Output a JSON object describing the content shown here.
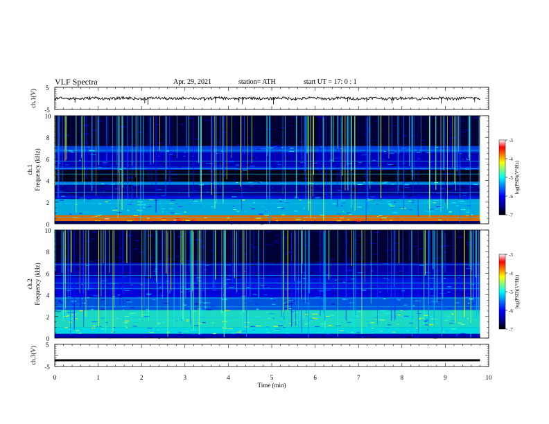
{
  "header": {
    "title": "VLF  Spectra",
    "date": "Apr. 29, 2021",
    "station": "station= ATH",
    "start_ut": "start  UT  =    17: 0   : 1"
  },
  "chart_data": [
    {
      "type": "line",
      "name": "waveform-ch1",
      "ylabel": "ch.1(V)",
      "ylim": [
        -5,
        5
      ],
      "yticks": [
        "5",
        "-5"
      ],
      "xlim": [
        0,
        10
      ],
      "description_values": {
        "baseline": 0,
        "fluctuation_amplitude": 0.6,
        "end_min": 9.8
      }
    },
    {
      "type": "heatmap",
      "name": "spectrogram-ch1",
      "ylabel": "ch.1\nFrequency (kHz)",
      "ylim": [
        0,
        10
      ],
      "yticks": [
        "0",
        "2",
        "4",
        "6",
        "8",
        "10"
      ],
      "xlim": [
        0,
        10
      ],
      "data_end_min": 9.8,
      "bands_khz": [
        {
          "f0": 0.0,
          "f1": 0.25,
          "level": -6.6
        },
        {
          "f0": 0.25,
          "f1": 0.8,
          "level": -3.8
        },
        {
          "f0": 0.8,
          "f1": 2.3,
          "level": -5.2
        },
        {
          "f0": 2.3,
          "f1": 2.6,
          "level": -5.9
        },
        {
          "f0": 2.6,
          "f1": 3.6,
          "level": -6.4
        },
        {
          "f0": 3.6,
          "f1": 3.9,
          "level": -5.4
        },
        {
          "f0": 3.9,
          "f1": 5.0,
          "level": -6.9
        },
        {
          "f0": 5.0,
          "f1": 5.3,
          "level": -5.8
        },
        {
          "f0": 5.3,
          "f1": 6.6,
          "level": -6.2
        },
        {
          "f0": 6.6,
          "f1": 7.2,
          "level": -5.7
        },
        {
          "f0": 7.2,
          "f1": 10.0,
          "level": -6.8
        }
      ],
      "colorbar": {
        "label": "log(PSD)(V²/Hz)",
        "ticks": [
          "-3",
          "-4",
          "-5",
          "-6",
          "-7"
        ],
        "range": [
          -7,
          -3
        ]
      }
    },
    {
      "type": "heatmap",
      "name": "spectrogram-ch2",
      "ylabel": "ch.2\nFrequency (kHz)",
      "ylim": [
        0,
        10
      ],
      "yticks": [
        "0",
        "2",
        "4",
        "6",
        "8",
        "10"
      ],
      "xlim": [
        0,
        10
      ],
      "data_end_min": 9.8,
      "bands_khz": [
        {
          "f0": 0.0,
          "f1": 0.4,
          "level": -6.2
        },
        {
          "f0": 0.4,
          "f1": 1.0,
          "level": -5.0
        },
        {
          "f0": 1.0,
          "f1": 2.6,
          "level": -4.9
        },
        {
          "f0": 2.6,
          "f1": 3.8,
          "level": -5.6
        },
        {
          "f0": 3.8,
          "f1": 4.4,
          "level": -6.0
        },
        {
          "f0": 4.4,
          "f1": 5.6,
          "level": -5.9
        },
        {
          "f0": 5.6,
          "f1": 7.0,
          "level": -6.3
        },
        {
          "f0": 7.0,
          "f1": 10.0,
          "level": -6.8
        }
      ],
      "colorbar": {
        "label": "log(PSD)(V²/Hz)",
        "ticks": [
          "-3",
          "-4",
          "-5",
          "-6",
          "-7"
        ],
        "range": [
          -7,
          -3
        ]
      }
    },
    {
      "type": "line",
      "name": "waveform-ch3",
      "ylabel": "ch.3(V)",
      "ylim": [
        -5,
        5
      ],
      "yticks": [
        "5",
        "-5"
      ],
      "xlim": [
        0,
        10
      ],
      "xlabel": "Time  (min)",
      "xticks": [
        "0",
        "1",
        "2",
        "3",
        "4",
        "5",
        "6",
        "7",
        "8",
        "9",
        "10"
      ],
      "description_values": {
        "baseline": -2.2,
        "end_min": 9.8
      }
    }
  ],
  "colors": {
    "jet": [
      "#00008f",
      "#0000ff",
      "#007fff",
      "#00ffff",
      "#7fff7f",
      "#ffff00",
      "#ff7f00",
      "#ff0000",
      "#ffffff"
    ]
  }
}
